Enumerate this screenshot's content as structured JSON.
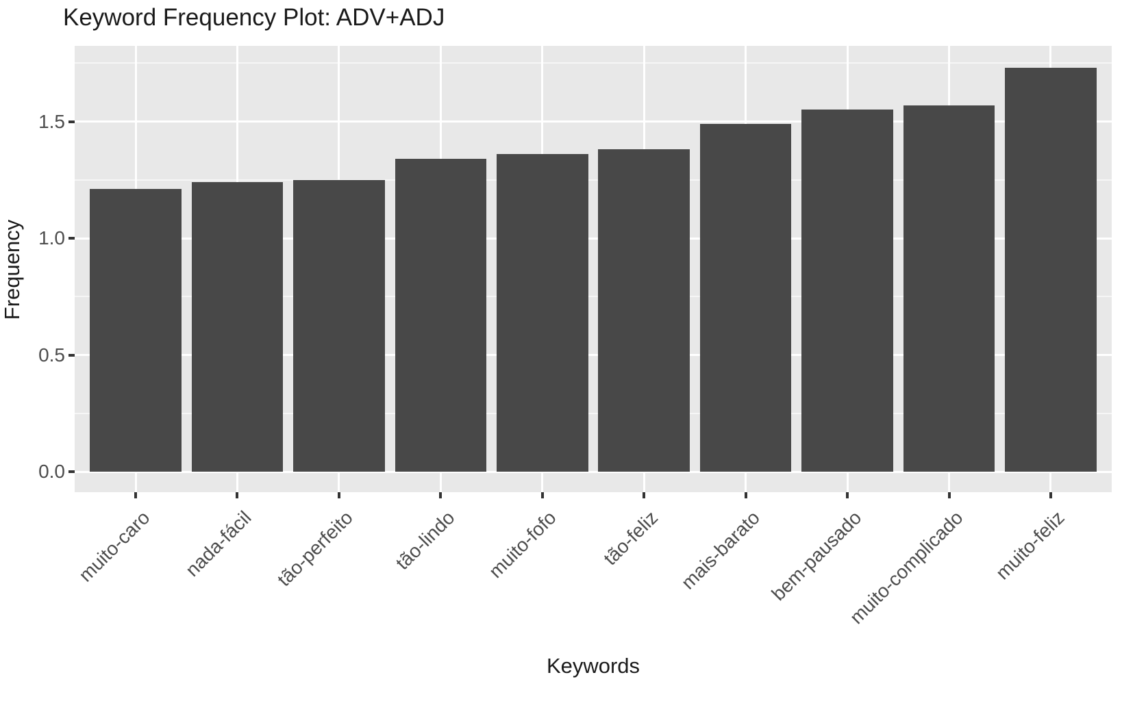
{
  "chart_data": {
    "type": "bar",
    "title": "Keyword Frequency Plot: ADV+ADJ",
    "xlabel": "Keywords",
    "ylabel": "Frequency",
    "categories": [
      "muito-caro",
      "nada-fácil",
      "tão-perfeito",
      "tão-lindo",
      "muito-fofo",
      "tão-feliz",
      "mais-barato",
      "bem-pausado",
      "muito-complicado",
      "muito-feliz"
    ],
    "values": [
      1.21,
      1.24,
      1.25,
      1.34,
      1.36,
      1.38,
      1.49,
      1.55,
      1.57,
      1.73
    ],
    "ylim": [
      0,
      1.82
    ],
    "yticks_major": [
      0.0,
      0.5,
      1.0,
      1.5
    ],
    "ytick_labels": [
      "0.0",
      "0.5",
      "1.0",
      "1.5"
    ],
    "yticks_minor": [
      0.25,
      0.75,
      1.25,
      1.75
    ],
    "grid": "on",
    "legend": "none",
    "x_label_angle_deg": 45,
    "colors": {
      "bar": "#484848",
      "panel_background": "#e8e8e8",
      "grid_major": "#ffffff",
      "grid_minor": "#f6f6f6",
      "axis_text": "#4d4d4d",
      "tick_mark": "#333333",
      "title_text": "#1a1a1a"
    }
  }
}
